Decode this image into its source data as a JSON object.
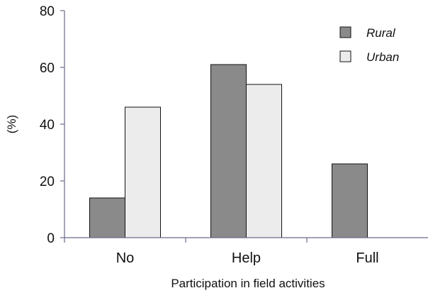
{
  "chart_data": {
    "type": "bar",
    "categories": [
      "No",
      "Help",
      "Full"
    ],
    "series": [
      {
        "name": "Rural",
        "values": [
          14,
          61,
          26
        ],
        "color": "#8a8a8a"
      },
      {
        "name": "Urban",
        "values": [
          46,
          54,
          0
        ],
        "color": "#ececec"
      }
    ],
    "xlabel": "Participation in field activities",
    "ylabel": "(%)",
    "ylim": [
      0,
      80
    ],
    "yticks": [
      0,
      20,
      40,
      60,
      80
    ],
    "grid": false,
    "legend": "top-right"
  }
}
